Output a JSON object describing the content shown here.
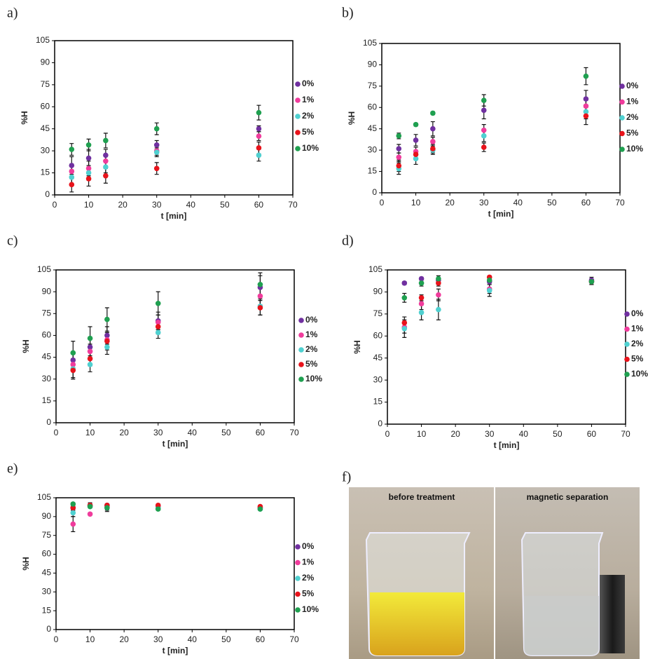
{
  "chart_data": [
    {
      "type": "scatter",
      "label": "a)",
      "x_label": "t [min]",
      "y_label": "%H",
      "x": [
        5,
        10,
        15,
        30,
        60
      ],
      "xlim": [
        0,
        70
      ],
      "xticks": [
        0,
        10,
        20,
        30,
        40,
        50,
        60,
        70
      ],
      "ylim": [
        0,
        105
      ],
      "yticks": [
        0,
        15,
        30,
        45,
        60,
        75,
        90,
        105
      ],
      "series": [
        {
          "name": "0%",
          "color": "#7030a0",
          "values": [
            20,
            25,
            27,
            34,
            45
          ],
          "errors": [
            6,
            6,
            4,
            3,
            2
          ]
        },
        {
          "name": "1%",
          "color": "#f03c9c",
          "values": [
            16,
            18,
            23,
            30,
            40
          ],
          "errors": [
            5,
            5,
            4,
            3,
            3
          ]
        },
        {
          "name": "2%",
          "color": "#4fd0d0",
          "values": [
            12,
            15,
            19,
            29,
            27
          ],
          "errors": [
            5,
            5,
            4,
            3,
            4
          ]
        },
        {
          "name": "5%",
          "color": "#e8131b",
          "values": [
            7,
            11,
            13,
            18,
            32
          ],
          "errors": [
            5,
            5,
            5,
            4,
            4
          ]
        },
        {
          "name": "10%",
          "color": "#1fa050",
          "values": [
            31,
            34,
            37,
            45,
            56
          ],
          "errors": [
            4,
            4,
            5,
            4,
            5
          ]
        }
      ]
    },
    {
      "type": "scatter",
      "label": "b)",
      "x_label": "t [min]",
      "y_label": "%H",
      "x": [
        5,
        10,
        15,
        30,
        60
      ],
      "xlim": [
        0,
        70
      ],
      "xticks": [
        0,
        10,
        20,
        30,
        40,
        50,
        60,
        70
      ],
      "ylim": [
        0,
        105
      ],
      "yticks": [
        0,
        15,
        30,
        45,
        60,
        75,
        90,
        105
      ],
      "series": [
        {
          "name": "0%",
          "color": "#7030a0",
          "values": [
            31,
            37,
            45,
            58,
            66
          ],
          "errors": [
            3,
            4,
            5,
            6,
            6
          ]
        },
        {
          "name": "1%",
          "color": "#f03c9c",
          "values": [
            25,
            29,
            36,
            44,
            61
          ],
          "errors": [
            3,
            3,
            3,
            4,
            4
          ]
        },
        {
          "name": "2%",
          "color": "#4fd0d0",
          "values": [
            17,
            24,
            30,
            40,
            57
          ],
          "errors": [
            4,
            4,
            3,
            4,
            5
          ]
        },
        {
          "name": "5%",
          "color": "#e8131b",
          "values": [
            19,
            27,
            31,
            32,
            54
          ],
          "errors": [
            4,
            3,
            3,
            3,
            6
          ]
        },
        {
          "name": "10%",
          "color": "#1fa050",
          "values": [
            40,
            48,
            56,
            65,
            82
          ],
          "errors": [
            2,
            1,
            1,
            4,
            6
          ]
        }
      ]
    },
    {
      "type": "scatter",
      "label": "c)",
      "x_label": "t [min]",
      "y_label": "%H",
      "x": [
        5,
        10,
        15,
        30,
        60
      ],
      "xlim": [
        0,
        70
      ],
      "xticks": [
        0,
        10,
        20,
        30,
        40,
        50,
        60,
        70
      ],
      "ylim": [
        0,
        105
      ],
      "yticks": [
        0,
        15,
        30,
        45,
        60,
        75,
        90,
        105
      ],
      "series": [
        {
          "name": "0%",
          "color": "#7030a0",
          "values": [
            43,
            52,
            60,
            70,
            93
          ],
          "errors": [
            5,
            6,
            6,
            6,
            8
          ]
        },
        {
          "name": "1%",
          "color": "#f03c9c",
          "values": [
            40,
            49,
            57,
            69,
            87
          ],
          "errors": [
            4,
            5,
            5,
            5,
            6
          ]
        },
        {
          "name": "2%",
          "color": "#4fd0d0",
          "values": [
            37,
            40,
            52,
            62,
            80
          ],
          "errors": [
            6,
            5,
            5,
            4,
            6
          ]
        },
        {
          "name": "5%",
          "color": "#e8131b",
          "values": [
            36,
            44,
            56,
            66,
            79
          ],
          "errors": [
            6,
            5,
            6,
            5,
            5
          ]
        },
        {
          "name": "10%",
          "color": "#1fa050",
          "values": [
            48,
            58,
            71,
            82,
            95
          ],
          "errors": [
            8,
            8,
            8,
            8,
            8
          ]
        }
      ]
    },
    {
      "type": "scatter",
      "label": "d)",
      "x_label": "t [min]",
      "y_label": "%H",
      "x": [
        5,
        10,
        15,
        30,
        60
      ],
      "xlim": [
        0,
        70
      ],
      "xticks": [
        0,
        10,
        20,
        30,
        40,
        50,
        60,
        70
      ],
      "ylim": [
        0,
        105
      ],
      "yticks": [
        0,
        15,
        30,
        45,
        60,
        75,
        90,
        105
      ],
      "series": [
        {
          "name": "0%",
          "color": "#7030a0",
          "values": [
            96,
            99,
            98,
            97,
            98
          ],
          "errors": [
            1,
            1,
            1,
            1,
            2
          ]
        },
        {
          "name": "1%",
          "color": "#f03c9c",
          "values": [
            66,
            82,
            88,
            92,
            97
          ],
          "errors": [
            4,
            4,
            4,
            3,
            2
          ]
        },
        {
          "name": "2%",
          "color": "#4fd0d0",
          "values": [
            65,
            76,
            78,
            91,
            97
          ],
          "errors": [
            6,
            5,
            7,
            4,
            2
          ]
        },
        {
          "name": "5%",
          "color": "#e8131b",
          "values": [
            69,
            86,
            96,
            100,
            97
          ],
          "errors": [
            4,
            2,
            2,
            1,
            2
          ]
        },
        {
          "name": "10%",
          "color": "#1fa050",
          "values": [
            86,
            96,
            99,
            98,
            97
          ],
          "errors": [
            3,
            2,
            2,
            2,
            2
          ]
        }
      ]
    },
    {
      "type": "scatter",
      "label": "e)",
      "x_label": "t [min]",
      "y_label": "%H",
      "x": [
        5,
        10,
        15,
        30,
        60
      ],
      "xlim": [
        0,
        70
      ],
      "xticks": [
        0,
        10,
        20,
        30,
        40,
        50,
        60,
        70
      ],
      "ylim": [
        0,
        105
      ],
      "yticks": [
        0,
        15,
        30,
        45,
        60,
        75,
        90,
        105
      ],
      "series": [
        {
          "name": "0%",
          "color": "#7030a0",
          "values": [
            97,
            99,
            99,
            98,
            97
          ],
          "errors": [
            2,
            2,
            1,
            1,
            1
          ]
        },
        {
          "name": "1%",
          "color": "#f03c9c",
          "values": [
            84,
            92,
            98,
            98,
            97
          ],
          "errors": [
            6,
            1,
            1,
            1,
            1
          ]
        },
        {
          "name": "2%",
          "color": "#4fd0d0",
          "values": [
            93,
            98,
            97,
            97,
            96
          ],
          "errors": [
            3,
            1,
            2,
            1,
            1
          ]
        },
        {
          "name": "5%",
          "color": "#e8131b",
          "values": [
            97,
            99,
            99,
            99,
            98
          ],
          "errors": [
            2,
            1,
            1,
            1,
            1
          ]
        },
        {
          "name": "10%",
          "color": "#1fa050",
          "values": [
            100,
            98,
            97,
            96,
            96
          ],
          "errors": [
            1,
            1,
            3,
            1,
            1
          ]
        }
      ]
    }
  ],
  "photo": {
    "label": "f)",
    "captions": [
      "before treatment",
      "magnetic separation"
    ]
  }
}
